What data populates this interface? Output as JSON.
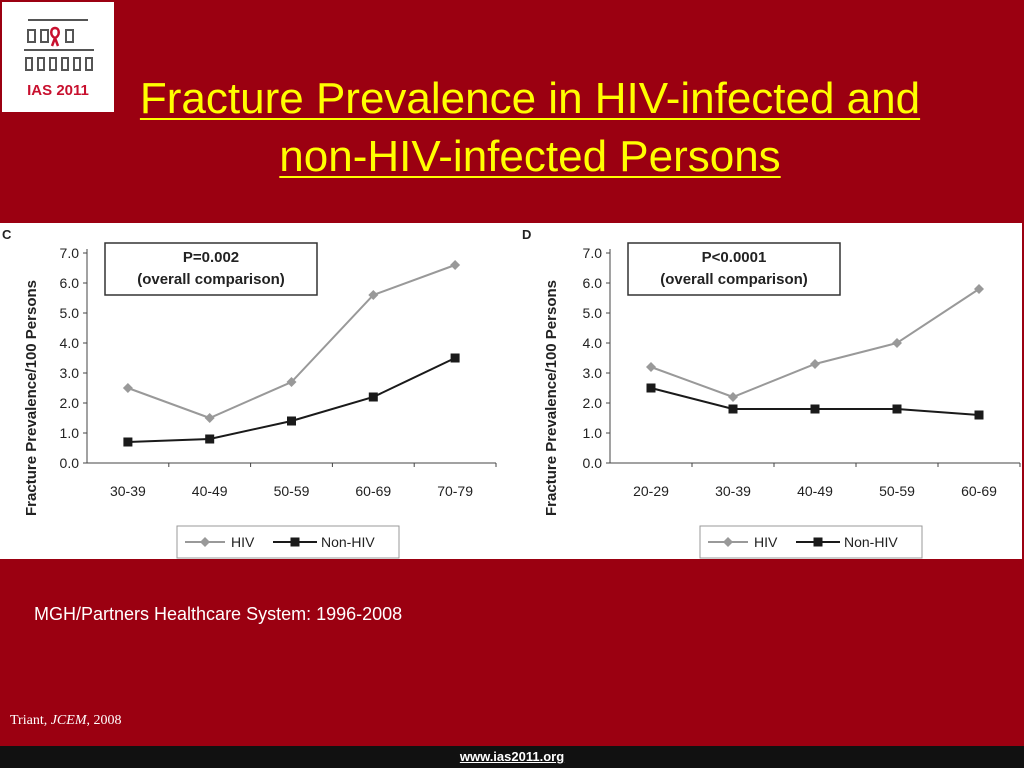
{
  "slide": {
    "logo": {
      "text": "IAS 2011"
    },
    "title": "Fracture Prevalence in HIV-infected and non-HIV-infected Persons",
    "caption": "MGH/Partners Healthcare System: 1996-2008",
    "citation": {
      "author": "Triant, ",
      "journal": "JCEM",
      "year": ", 2008"
    },
    "footer_url": "www.ias2011.org"
  },
  "colors": {
    "background": "#9b0011",
    "title": "#ffff00",
    "hiv": "#999999",
    "non_hiv": "#1a1a1a"
  },
  "chart_data": [
    {
      "panel_label": "C",
      "type": "line",
      "ylabel": "Fracture Prevalence/100 Persons",
      "ylim": [
        0,
        7
      ],
      "yticks": [
        "0.0",
        "1.0",
        "2.0",
        "3.0",
        "4.0",
        "5.0",
        "6.0",
        "7.0"
      ],
      "categories": [
        "30-39",
        "40-49",
        "50-59",
        "60-69",
        "70-79"
      ],
      "annotation": [
        "P=0.002",
        "(overall comparison)"
      ],
      "legend_position": "bottom",
      "series": [
        {
          "name": "HIV",
          "values": [
            2.5,
            1.5,
            2.7,
            5.6,
            6.6
          ],
          "marker": "diamond"
        },
        {
          "name": "Non-HIV",
          "values": [
            0.7,
            0.8,
            1.4,
            2.2,
            3.5
          ],
          "marker": "square"
        }
      ]
    },
    {
      "panel_label": "D",
      "type": "line",
      "ylabel": "Fracture Prevalence/100 Persons",
      "ylim": [
        0,
        7
      ],
      "yticks": [
        "0.0",
        "1.0",
        "2.0",
        "3.0",
        "4.0",
        "5.0",
        "6.0",
        "7.0"
      ],
      "categories": [
        "20-29",
        "30-39",
        "40-49",
        "50-59",
        "60-69"
      ],
      "annotation": [
        "P<0.0001",
        "(overall comparison)"
      ],
      "legend_position": "bottom",
      "series": [
        {
          "name": "HIV",
          "values": [
            3.2,
            2.2,
            3.3,
            4.0,
            5.8
          ],
          "marker": "diamond"
        },
        {
          "name": "Non-HIV",
          "values": [
            2.5,
            1.8,
            1.8,
            1.8,
            1.6
          ],
          "marker": "square"
        }
      ]
    }
  ]
}
